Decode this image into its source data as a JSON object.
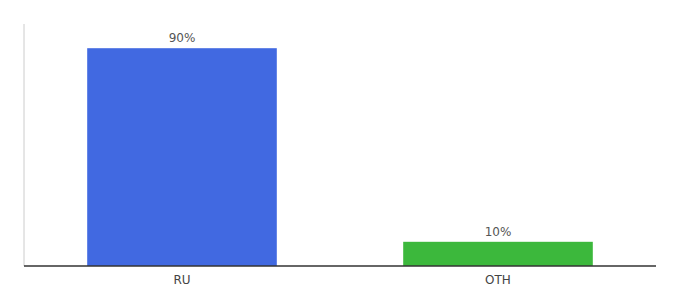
{
  "chart_data": {
    "type": "bar",
    "categories": [
      "RU",
      "OTH"
    ],
    "values": [
      90,
      10
    ],
    "colors": [
      "#4169e1",
      "#3cb83c"
    ],
    "ylim": [
      0,
      100
    ],
    "data_labels": true,
    "value_labels": [
      "90%",
      "10%"
    ],
    "tick_labels": "x"
  }
}
